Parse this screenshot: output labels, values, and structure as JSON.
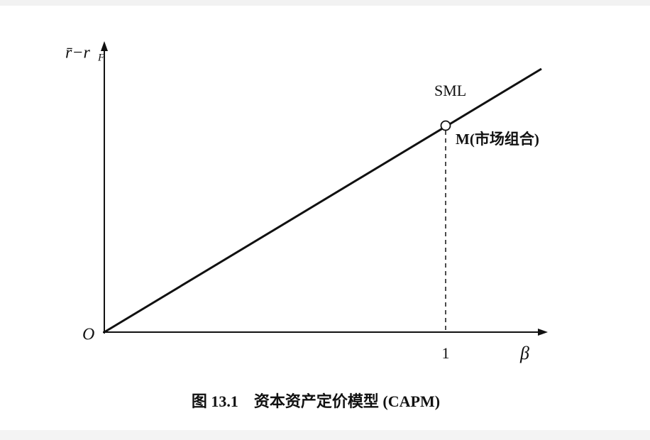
{
  "diagram": {
    "y_axis_label": "r̄−r",
    "y_axis_label_subscript": "F",
    "x_axis_label": "β",
    "origin_label": "O",
    "x_tick_label": "1",
    "line_label": "SML",
    "point_label": "M(市场组合)",
    "caption": "图 13.1　资本资产定价模型 (CAPM)"
  }
}
